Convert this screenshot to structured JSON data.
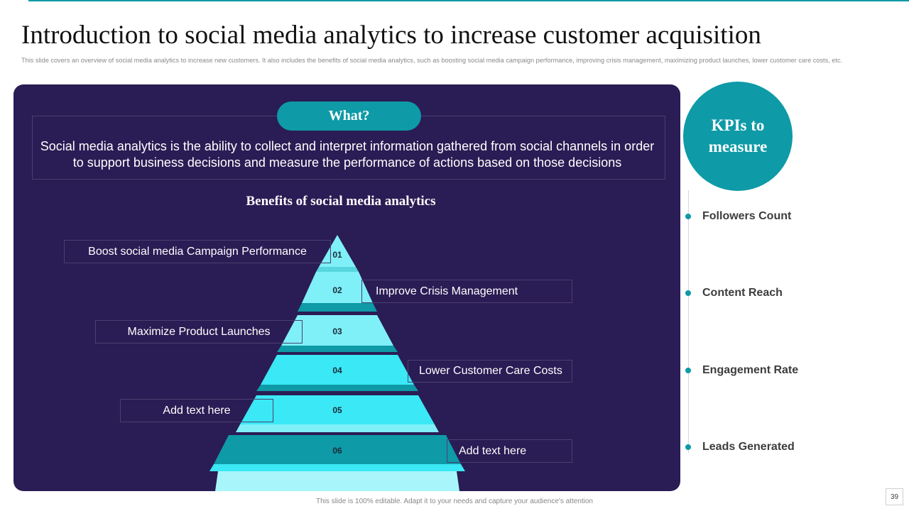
{
  "title": "Introduction to social media analytics to increase customer acquisition",
  "subtitle": "This slide covers an overview of social media analytics to increase new customers. It also includes the benefits of social media  analytics, such as boosting social media  campaign  performance, improving crisis management,  maximizing  product launches, lower customer care costs, etc.",
  "what": {
    "heading": "What?",
    "text": "Social media analytics is the ability to collect and interpret information gathered from social channels in order to support business decisions and measure the performance of actions based on those decisions"
  },
  "benefits": {
    "title": "Benefits of social media analytics",
    "items": [
      {
        "num": "01",
        "label": "Boost social media Campaign Performance"
      },
      {
        "num": "02",
        "label": "Improve  Crisis Management"
      },
      {
        "num": "03",
        "label": "Maximize  Product Launches"
      },
      {
        "num": "04",
        "label": "Lower Customer Care Costs"
      },
      {
        "num": "05",
        "label": "Add text here"
      },
      {
        "num": "06",
        "label": "Add text here"
      }
    ]
  },
  "kpis": {
    "heading": "KPIs to measure",
    "items": [
      "Followers Count",
      "Content Reach",
      "Engagement Rate",
      "Leads Generated"
    ]
  },
  "colors": {
    "panel": "#2a1c54",
    "accent": "#0e9aa7",
    "tier_light": "#7ff0f8",
    "tier_bright": "#3be8f5",
    "tier_dark": "#0e9aa7"
  },
  "footer": "This slide is 100% editable.  Adapt it to your needs and capture your audience's attention",
  "page_number": "39"
}
